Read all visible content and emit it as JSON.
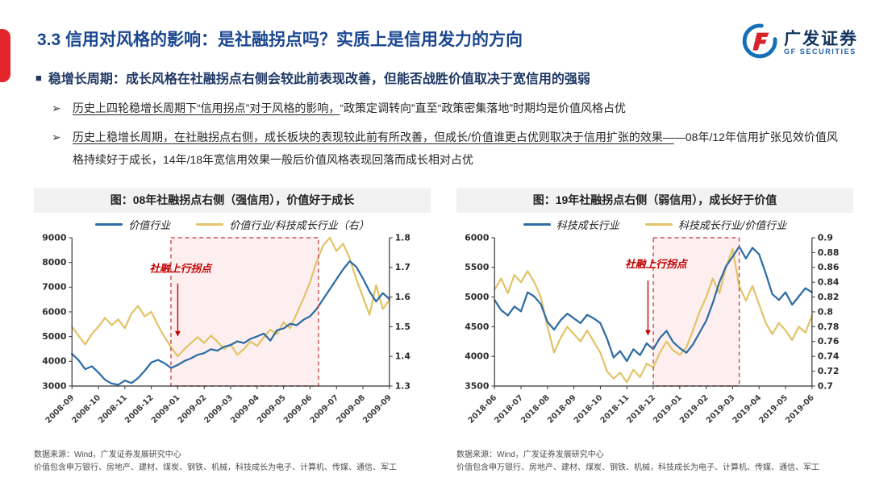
{
  "page": {
    "title": "3.3 信用对风格的影响：是社融拐点吗？实质上是信用发力的方向",
    "section_heading": "稳增长周期：成长风格在社融拐点右侧会较此前表现改善，但能否战胜价值取决于宽信用的强弱",
    "markers": {
      "square": "■",
      "arrow": "➢"
    },
    "bullets": [
      {
        "underlined": "历史上四轮稳增长周期下“信用拐点”对于风格的影响，",
        "rest": "“政策定调转向”直至“政策密集落地”时期均是价值风格占优"
      },
      {
        "underlined": "历史上稳增长周期，在社融拐点右侧，成长板块的表现较此前有所改善，但成长/价值谁更占优则取决于信用扩张的效果—",
        "rest": "—08年/12年信用扩张见效价值风格持续好于成长，14年/18年宽信用效果一般后价值风格表现回落而成长相对占优"
      }
    ],
    "footnotes": {
      "source": "数据来源：Wind，广发证券发展研究中心",
      "note": "价值包含申万银行、房地产、建材、煤炭、钢铁、机械，科技成长为电子、计算机、传媒、通信、军工"
    }
  },
  "logo": {
    "cn": "广发证券",
    "en": "GF SECURITIES"
  },
  "colors": {
    "accent_red": "#e2262c",
    "title_navy": "#1b4790",
    "heading_navy": "#1f3864",
    "line_blue": "#2e6da4",
    "line_yellow": "#e3c46a",
    "shade_fill": "#fdeff0",
    "shade_border": "#c85450",
    "annotation_red": "#c00000"
  },
  "chart_data": [
    {
      "type": "line",
      "title": "图：08年社融拐点右侧（强信用），价值好于成长",
      "x_ticks": [
        "2008-09",
        "2008-10",
        "2008-11",
        "2008-12",
        "2009-01",
        "2009-02",
        "2009-03",
        "2009-04",
        "2009-05",
        "2009-06",
        "2009-07",
        "2009-08",
        "2009-09"
      ],
      "left_axis": {
        "min": 3000,
        "max": 9000,
        "ticks": [
          3000,
          4000,
          5000,
          6000,
          7000,
          8000,
          9000
        ],
        "labels": [
          "3000",
          "4000",
          "5000",
          "6000",
          "7000",
          "8000",
          "9000"
        ]
      },
      "right_axis": {
        "min": 1.3,
        "max": 1.8,
        "ticks": [
          1.3,
          1.4,
          1.5,
          1.6,
          1.7,
          1.8
        ],
        "labels": [
          "1.3",
          "1.4",
          "1.5",
          "1.6",
          "1.7",
          "1.8"
        ]
      },
      "shade": {
        "from_month": 3.74,
        "to_month": 9.32
      },
      "annotation": {
        "label": "社融上行拐点",
        "label_month": 4.1,
        "label_value": 7620,
        "arrow_month": 4.0,
        "arrow_from": 7150,
        "arrow_to": 5000
      },
      "series": [
        {
          "name": "价值行业",
          "axis": "left",
          "color": "#2e6da4",
          "x_step": 0.25,
          "values": [
            4300,
            4050,
            3680,
            3800,
            3550,
            3250,
            3100,
            3050,
            3220,
            3120,
            3320,
            3620,
            3950,
            4060,
            3920,
            3730,
            3850,
            4010,
            4120,
            4260,
            4330,
            4490,
            4430,
            4590,
            4660,
            4810,
            4740,
            4910,
            5010,
            5120,
            4840,
            5260,
            5330,
            5520,
            5460,
            5680,
            5820,
            6120,
            6520,
            6920,
            7320,
            7720,
            8050,
            7820,
            7350,
            6820,
            6420,
            6760,
            6520
          ]
        },
        {
          "name": "价值行业/科技成长行业（右）",
          "axis": "right",
          "color": "#e3c46a",
          "x_step": 0.25,
          "values": [
            1.5,
            1.47,
            1.44,
            1.475,
            1.5,
            1.53,
            1.505,
            1.525,
            1.495,
            1.545,
            1.57,
            1.535,
            1.55,
            1.505,
            1.465,
            1.43,
            1.4,
            1.425,
            1.445,
            1.465,
            1.445,
            1.47,
            1.45,
            1.425,
            1.44,
            1.405,
            1.425,
            1.45,
            1.435,
            1.465,
            1.49,
            1.475,
            1.515,
            1.495,
            1.545,
            1.595,
            1.65,
            1.72,
            1.775,
            1.8,
            1.755,
            1.78,
            1.73,
            1.66,
            1.6,
            1.54,
            1.64,
            1.56,
            1.59
          ]
        }
      ]
    },
    {
      "type": "line",
      "title": "图：19年社融拐点右侧（弱信用），成长好于价值",
      "x_ticks": [
        "2018-06",
        "2018-07",
        "2018-08",
        "2018-09",
        "2018-10",
        "2018-11",
        "2018-12",
        "2019-01",
        "2019-02",
        "2019-03",
        "2019-04",
        "2019-05",
        "2019-06"
      ],
      "left_axis": {
        "min": 3500,
        "max": 6000,
        "ticks": [
          3500,
          4000,
          4500,
          5000,
          5500,
          6000
        ],
        "labels": [
          "3500",
          "4000",
          "4500",
          "5000",
          "5500",
          "6000"
        ]
      },
      "right_axis": {
        "min": 0.7,
        "max": 0.9,
        "ticks": [
          0.7,
          0.72,
          0.74,
          0.76,
          0.78,
          0.8,
          0.82,
          0.84,
          0.86,
          0.88,
          0.9
        ],
        "labels": [
          "0.7",
          "0.72",
          "0.74",
          "0.76",
          "0.78",
          "0.8",
          "0.82",
          "0.84",
          "0.86",
          "0.88",
          "0.9"
        ]
      },
      "shade": {
        "from_month": 6.0,
        "to_month": 9.25
      },
      "annotation": {
        "label": "社融上行拐点",
        "label_month": 6.1,
        "label_value": 5500,
        "arrow_month": 5.8,
        "arrow_from": 5280,
        "arrow_to": 4350
      },
      "series": [
        {
          "name": "科技成长行业",
          "axis": "left",
          "color": "#2e6da4",
          "x_step": 0.25,
          "values": [
            4950,
            4780,
            4690,
            4840,
            4760,
            5080,
            5010,
            4880,
            4580,
            4450,
            4610,
            4720,
            4640,
            4560,
            4700,
            4640,
            4560,
            4300,
            3980,
            4090,
            3920,
            4120,
            4020,
            4220,
            4120,
            4310,
            4430,
            4240,
            4140,
            4060,
            4200,
            4400,
            4600,
            4900,
            5250,
            5520,
            5680,
            5850,
            5650,
            5830,
            5720,
            5400,
            5050,
            4950,
            5080,
            4870,
            5010,
            5150,
            5080
          ]
        },
        {
          "name": "科技成长行业/价值行业",
          "axis": "right",
          "color": "#e3c46a",
          "x_step": 0.25,
          "values": [
            0.83,
            0.845,
            0.825,
            0.85,
            0.84,
            0.855,
            0.84,
            0.82,
            0.78,
            0.745,
            0.765,
            0.78,
            0.77,
            0.76,
            0.775,
            0.76,
            0.745,
            0.72,
            0.71,
            0.718,
            0.705,
            0.722,
            0.712,
            0.73,
            0.725,
            0.745,
            0.76,
            0.748,
            0.742,
            0.752,
            0.775,
            0.8,
            0.82,
            0.845,
            0.825,
            0.86,
            0.885,
            0.835,
            0.815,
            0.835,
            0.81,
            0.785,
            0.77,
            0.785,
            0.775,
            0.762,
            0.78,
            0.772,
            0.795
          ]
        }
      ]
    }
  ]
}
